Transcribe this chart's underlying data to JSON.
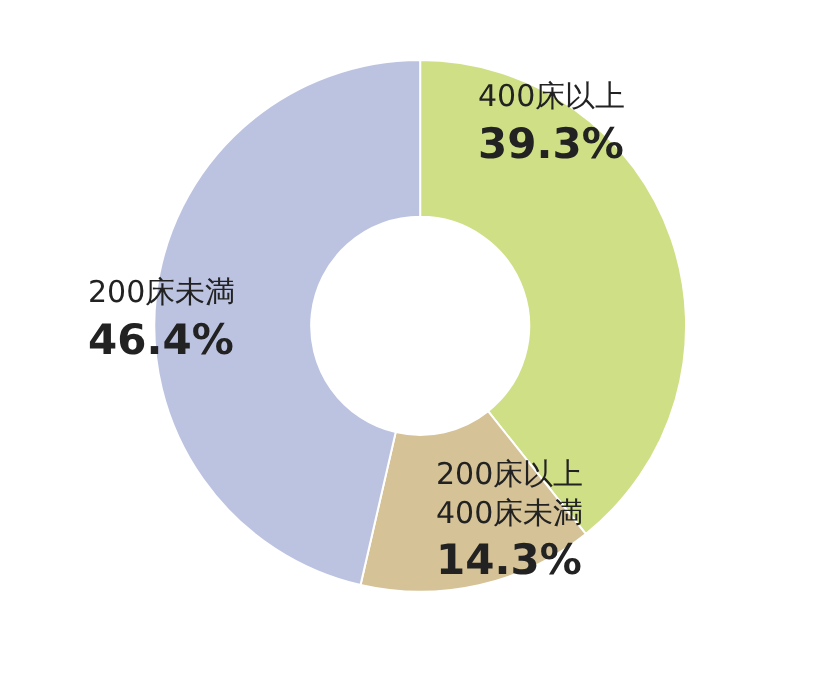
{
  "chart_data": {
    "type": "donut",
    "categories": [
      "400床以上",
      "200床以上\n400床未満",
      "200床未満"
    ],
    "values": [
      39.3,
      14.3,
      46.4
    ],
    "colors": [
      "#cfdf85",
      "#d5c297",
      "#bcc3e1"
    ],
    "value_labels": [
      "39.3%",
      "14.3%",
      "46.4%"
    ],
    "legend": false
  }
}
